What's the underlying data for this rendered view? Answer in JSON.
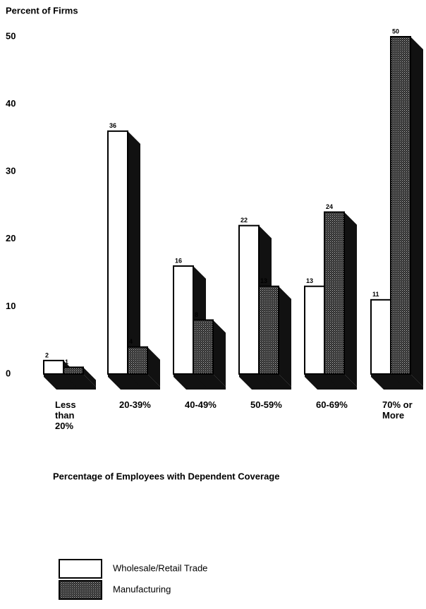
{
  "chart_data": {
    "type": "bar3d",
    "y_label": "Percent of Firms",
    "x_label": "Percentage of Employees with Dependent Coverage",
    "categories": [
      "Less than 20%",
      "20-39%",
      "40-49%",
      "50-59%",
      "60-69%",
      "70% or More"
    ],
    "series": [
      {
        "name": "Wholesale/Retail Trade",
        "color": "#ffffff",
        "values": [
          2,
          36,
          16,
          22,
          13,
          11
        ]
      },
      {
        "name": "Manufacturing",
        "color": "#3a3a3a",
        "values": [
          1,
          4,
          8,
          13,
          24,
          50
        ]
      }
    ],
    "ylim": [
      0,
      50
    ],
    "yticks": [
      0,
      10,
      20,
      30,
      40,
      50
    ]
  }
}
